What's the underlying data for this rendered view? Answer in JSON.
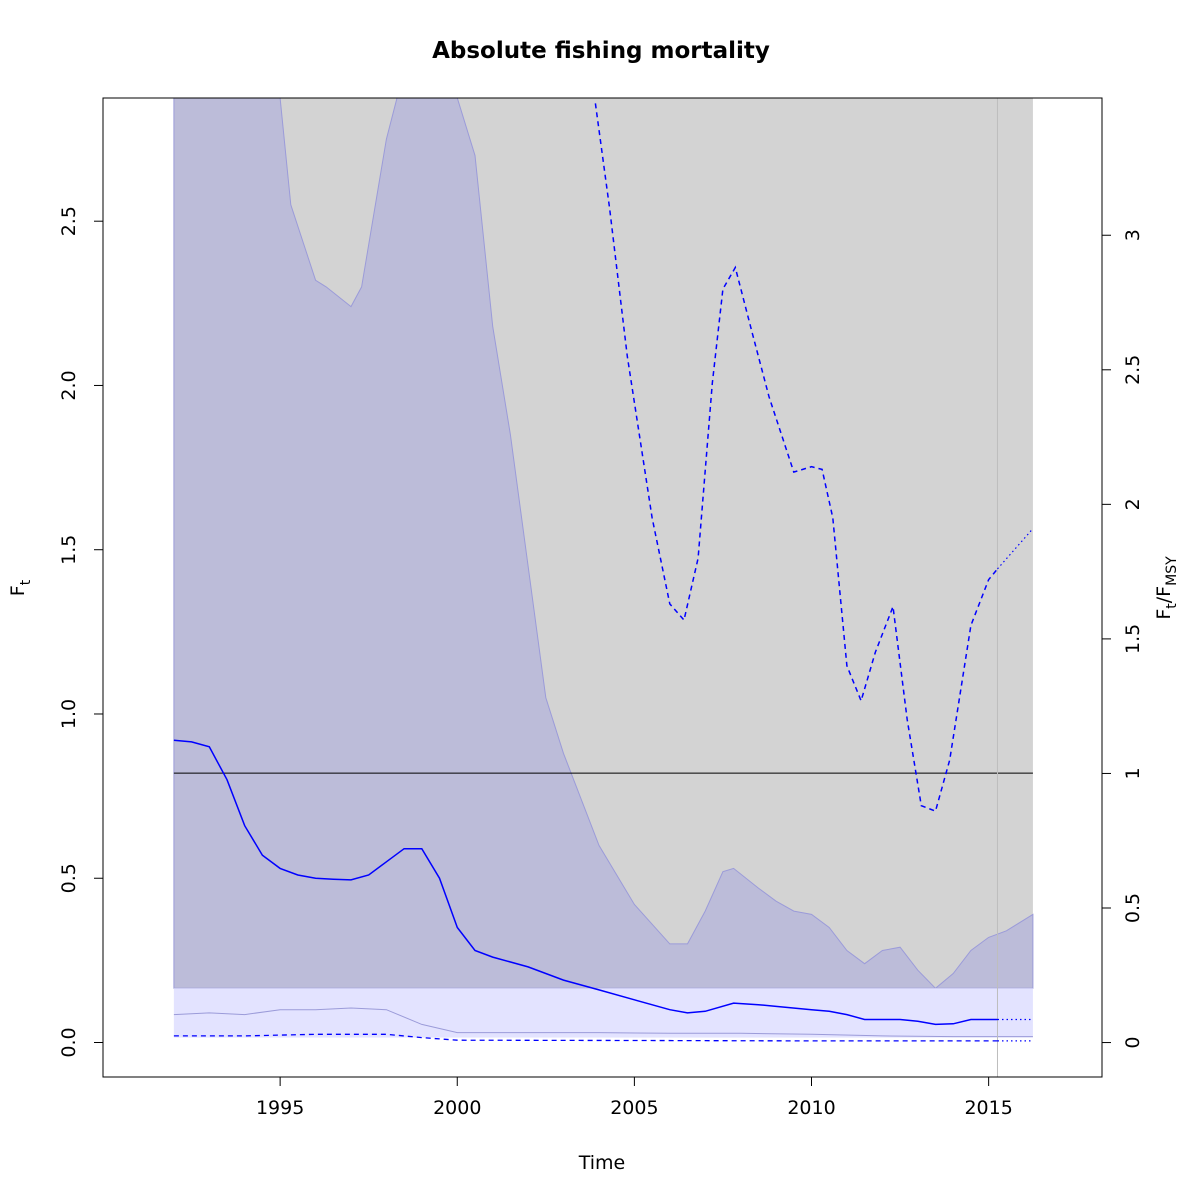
{
  "chart_data": {
    "type": "line",
    "title": "Absolute fishing mortality",
    "xlabel": "Time",
    "ylabel_main": "F",
    "ylabel_sub": "t",
    "y2label": {
      "f_main": "F",
      "f_sub": "t",
      "sep": "/",
      "fmsy_main": "F",
      "fmsy_sub": "MSY"
    },
    "xlim": [
      1990.0,
      2018.2
    ],
    "ylim": [
      -0.105,
      2.875
    ],
    "y2lim": [
      -0.128,
      3.51
    ],
    "x_ticks": [
      1995,
      2000,
      2005,
      2010,
      2015
    ],
    "x_tick_labels": [
      "1995",
      "2000",
      "2005",
      "2010",
      "2015"
    ],
    "y_ticks": [
      0.0,
      0.5,
      1.0,
      1.5,
      2.0,
      2.5
    ],
    "y_tick_labels": [
      "0.0",
      "0.5",
      "1.0",
      "1.5",
      "2.0",
      "2.5"
    ],
    "y2_ticks": [
      0,
      0.5,
      1,
      1.5,
      2,
      2.5,
      3
    ],
    "y2_tick_labels": [
      "0",
      "0.5",
      "1",
      "1.5",
      "2",
      "2.5",
      "3"
    ],
    "grid": false,
    "legend": "none",
    "colors": {
      "f_line": "#0000ff",
      "ci_band": "#bcbcd9",
      "ci_edge": "#9b9bd9",
      "ratio_region": "#d3d3d3",
      "lower_band": "#e3e3ff",
      "fmsy_line": "#000000",
      "vline": "#bebebe"
    },
    "fmsy_reference": 0.82,
    "last_observation_time": 2015.25,
    "ratio_region_bounds": {
      "x": [
        1992.0,
        2016.25
      ],
      "y": [
        0.165,
        2.875
      ]
    },
    "lower_band_bounds": {
      "x": [
        1992.0,
        2016.25
      ],
      "y": [
        0.015,
        0.165
      ]
    },
    "series": [
      {
        "role": "f_estimate",
        "x": [
          1992.0,
          1992.5,
          1993.0,
          1993.5,
          1994.0,
          1994.5,
          1995.0,
          1995.5,
          1996.0,
          1996.5,
          1997.0,
          1997.5,
          1998.0,
          1998.5,
          1999.0,
          1999.5,
          2000.0,
          2000.5,
          2001.0,
          2002.0,
          2003.0,
          2004.0,
          2005.0,
          2006.0,
          2006.5,
          2007.0,
          2007.8,
          2008.5,
          2009.0,
          2010.0,
          2010.5,
          2011.0,
          2011.5,
          2012.0,
          2012.5,
          2013.0,
          2013.5,
          2014.0,
          2014.5,
          2015.25
        ],
        "y": [
          0.92,
          0.915,
          0.9,
          0.8,
          0.66,
          0.57,
          0.53,
          0.51,
          0.5,
          0.497,
          0.495,
          0.51,
          0.55,
          0.59,
          0.59,
          0.5,
          0.35,
          0.28,
          0.26,
          0.23,
          0.19,
          0.16,
          0.13,
          0.1,
          0.09,
          0.095,
          0.12,
          0.115,
          0.11,
          0.1,
          0.095,
          0.085,
          0.07,
          0.07,
          0.07,
          0.065,
          0.055,
          0.057,
          0.07,
          0.07
        ]
      },
      {
        "role": "f_prediction",
        "x": [
          2015.25,
          2016.25
        ],
        "y": [
          0.07,
          0.07
        ]
      },
      {
        "role": "ci_upper",
        "x": [
          1992.0,
          1995.0,
          1995.3,
          1996.0,
          1996.3,
          1997.0,
          1997.3,
          1998.0,
          1998.3,
          2000.0,
          2000.5,
          2001.0,
          2001.5,
          2002.0,
          2002.5,
          2003.0,
          2004.0,
          2005.0,
          2006.0,
          2006.5,
          2007.0,
          2007.5,
          2007.8,
          2008.5,
          2009.0,
          2009.5,
          2010.0,
          2010.5,
          2011.0,
          2011.5,
          2012.0,
          2012.5,
          2013.0,
          2013.5,
          2014.0,
          2014.5,
          2015.0,
          2015.5,
          2016.25
        ],
        "y": [
          2.875,
          2.875,
          2.55,
          2.32,
          2.3,
          2.24,
          2.3,
          2.75,
          2.875,
          2.875,
          2.7,
          2.18,
          1.85,
          1.45,
          1.05,
          0.88,
          0.6,
          0.42,
          0.3,
          0.3,
          0.4,
          0.52,
          0.53,
          0.47,
          0.43,
          0.4,
          0.39,
          0.35,
          0.28,
          0.24,
          0.28,
          0.29,
          0.22,
          0.165,
          0.21,
          0.28,
          0.32,
          0.34,
          0.39
        ]
      },
      {
        "role": "ci_lower",
        "x": [
          1992.0,
          1993.0,
          1994.0,
          1995.0,
          1996.0,
          1997.0,
          1998.0,
          1999.0,
          2000.0,
          2002.0,
          2004.0,
          2006.0,
          2008.0,
          2010.0,
          2012.0,
          2014.0,
          2016.25
        ],
        "y": [
          0.085,
          0.09,
          0.085,
          0.1,
          0.1,
          0.105,
          0.1,
          0.055,
          0.03,
          0.03,
          0.03,
          0.028,
          0.028,
          0.025,
          0.02,
          0.018,
          0.018
        ]
      },
      {
        "role": "lower_dashed",
        "x": [
          1992.0,
          1994.0,
          1996.0,
          1998.0,
          1999.0,
          2000.0,
          2005.0,
          2010.0,
          2015.25
        ],
        "y": [
          0.02,
          0.02,
          0.025,
          0.025,
          0.015,
          0.007,
          0.006,
          0.005,
          0.005
        ]
      },
      {
        "role": "lower_dotted",
        "x": [
          2015.25,
          2016.25
        ],
        "y": [
          0.005,
          0.005
        ]
      },
      {
        "role": "ratio_ffmsy",
        "x": [
          2003.9,
          2004.3,
          2004.8,
          2005.5,
          2006.0,
          2006.4,
          2006.8,
          2007.2,
          2007.5,
          2007.85,
          2008.3,
          2008.8,
          2009.5,
          2010.0,
          2010.3,
          2010.6,
          2011.0,
          2011.4,
          2011.8,
          2012.3,
          2012.7,
          2013.1,
          2013.5,
          2013.9,
          2014.5,
          2015.0,
          2015.25
        ],
        "y": [
          3.49,
          3.1,
          2.55,
          1.95,
          1.63,
          1.57,
          1.8,
          2.45,
          2.8,
          2.88,
          2.65,
          2.4,
          2.12,
          2.14,
          2.13,
          1.95,
          1.4,
          1.27,
          1.45,
          1.62,
          1.2,
          0.88,
          0.86,
          1.05,
          1.55,
          1.72,
          1.76
        ]
      },
      {
        "role": "ratio_ffmsy_prediction",
        "x": [
          2015.25,
          2016.25
        ],
        "y": [
          1.76,
          1.91
        ]
      }
    ]
  }
}
